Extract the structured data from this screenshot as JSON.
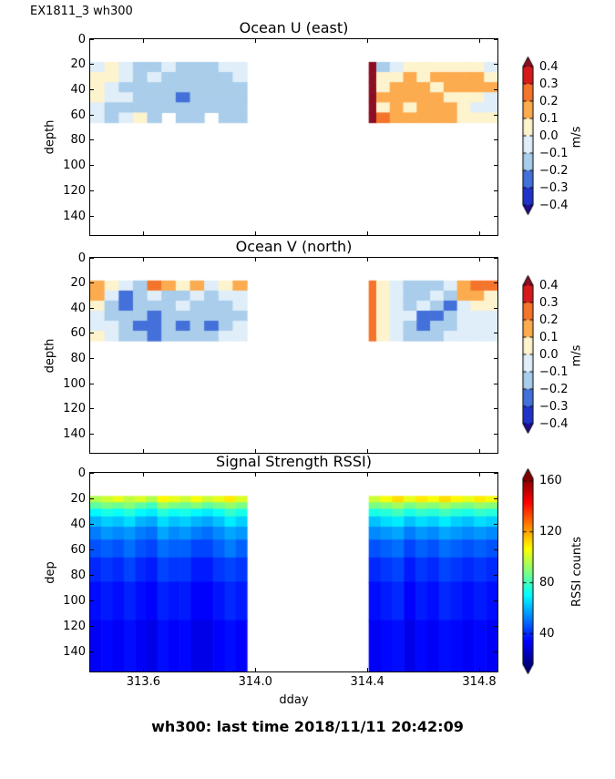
{
  "header": {
    "label": "EX1811_3 wh300"
  },
  "footer": {
    "status": "wh300: last time 2018/11/11 20:42:09"
  },
  "uv_colormap": {
    "vmin": -0.4,
    "vmax": 0.4,
    "step": 0.1,
    "colors": [
      "#2132cb",
      "#4470da",
      "#a9cdea",
      "#dfeef9",
      "#fdf3cd",
      "#fcab4f",
      "#f4742b",
      "#d7191c"
    ],
    "under": "#250a8c",
    "over": "#8c0e22"
  },
  "jet_colormap": {
    "range": [
      16,
      162
    ]
  },
  "chart_data": [
    {
      "type": "heatmap",
      "title": "Ocean U (east)",
      "ylabel": "depth",
      "xlim": [
        313.41,
        314.865
      ],
      "ylim": [
        0,
        155
      ],
      "y_inverted": true,
      "xticks": [
        313.6,
        314.0,
        314.4,
        314.8
      ],
      "xtick_labels": null,
      "yticks": [
        0,
        20,
        40,
        60,
        80,
        100,
        120,
        140
      ],
      "ytick_labels": [
        "0",
        "20",
        "40",
        "60",
        "80",
        "100",
        "120",
        "140"
      ],
      "colorbar": {
        "kind": "uv",
        "label": "m/s",
        "bar_min": -0.4,
        "bar_max": 0.4,
        "ticks": [
          0.4,
          0.3,
          0.2,
          0.1,
          0.0,
          -0.1,
          -0.2,
          -0.3,
          -0.4
        ],
        "tick_labels": [
          "0.4",
          "0.3",
          "0.2",
          "0.1",
          "0.0",
          "−0.1",
          "−0.2",
          "−0.3",
          "−0.4"
        ]
      },
      "blocks": [
        {
          "x0": 313.41,
          "x1": 313.97,
          "depth_edges": [
            18,
            26,
            34,
            42,
            50,
            58,
            66
          ],
          "values": [
            [
              -0.05,
              0.05,
              -0.05,
              -0.12,
              -0.12,
              -0.05,
              -0.12,
              -0.12,
              -0.12,
              -0.05,
              -0.05
            ],
            [
              0.05,
              0.05,
              -0.05,
              -0.15,
              -0.05,
              -0.12,
              -0.15,
              -0.15,
              -0.12,
              -0.12,
              -0.05
            ],
            [
              0.05,
              -0.05,
              -0.12,
              -0.12,
              -0.15,
              -0.12,
              -0.15,
              -0.15,
              -0.15,
              -0.12,
              -0.12
            ],
            [
              0.05,
              -0.05,
              -0.05,
              -0.15,
              -0.12,
              -0.15,
              -0.25,
              -0.15,
              -0.15,
              -0.15,
              -0.12
            ],
            [
              -0.05,
              -0.12,
              -0.15,
              -0.12,
              -0.15,
              -0.15,
              -0.15,
              -0.15,
              -0.15,
              -0.15,
              -0.12
            ],
            [
              -0.05,
              -0.12,
              -0.05,
              0.05,
              -0.12,
              null,
              -0.15,
              -0.15,
              null,
              -0.12,
              -0.12
            ]
          ]
        },
        {
          "x0": 314.405,
          "x1": 314.432,
          "depth_edges": [
            18,
            26,
            34,
            42,
            50,
            58,
            66
          ],
          "values": [
            [
              0.45
            ],
            [
              0.45
            ],
            [
              0.45
            ],
            [
              0.45
            ],
            [
              0.45
            ],
            [
              0.45
            ]
          ]
        },
        {
          "x0": 314.432,
          "x1": 314.865,
          "depth_edges": [
            18,
            26,
            34,
            42,
            50,
            58,
            66
          ],
          "values": [
            [
              -0.15,
              -0.05,
              0.05,
              0.05,
              0.08,
              0.05,
              0.05,
              0.05,
              -0.08
            ],
            [
              0.05,
              0.05,
              0.15,
              0.08,
              0.15,
              0.15,
              0.15,
              0.12,
              0.05
            ],
            [
              0.08,
              0.15,
              0.15,
              0.15,
              0.08,
              0.12,
              0.15,
              0.15,
              0.15
            ],
            [
              0.15,
              0.15,
              0.15,
              0.15,
              0.15,
              0.08,
              0.05,
              0.05,
              -0.08
            ],
            [
              0.08,
              0.15,
              0.08,
              0.15,
              0.15,
              0.15,
              0.08,
              -0.08,
              -0.08
            ],
            [
              0.25,
              0.15,
              0.15,
              0.18,
              0.15,
              0.15,
              0.05,
              0.05,
              0.05
            ]
          ]
        }
      ]
    },
    {
      "type": "heatmap",
      "title": "Ocean V (north)",
      "ylabel": "depth",
      "xlim": [
        313.41,
        314.865
      ],
      "ylim": [
        0,
        155
      ],
      "y_inverted": true,
      "xticks": [
        313.6,
        314.0,
        314.4,
        314.8
      ],
      "xtick_labels": null,
      "yticks": [
        0,
        20,
        40,
        60,
        80,
        100,
        120,
        140
      ],
      "ytick_labels": [
        "0",
        "20",
        "40",
        "60",
        "80",
        "100",
        "120",
        "140"
      ],
      "colorbar": {
        "kind": "uv",
        "label": "m/s",
        "bar_min": -0.4,
        "bar_max": 0.4,
        "ticks": [
          0.4,
          0.3,
          0.2,
          0.1,
          0.0,
          -0.1,
          -0.2,
          -0.3,
          -0.4
        ],
        "tick_labels": [
          "0.4",
          "0.3",
          "0.2",
          "0.1",
          "0.0",
          "−0.1",
          "−0.2",
          "−0.3",
          "−0.4"
        ]
      },
      "blocks": [
        {
          "x0": 313.41,
          "x1": 313.97,
          "depth_edges": [
            18,
            26,
            34,
            42,
            50,
            58,
            66
          ],
          "values": [
            [
              0.15,
              0.05,
              -0.08,
              -0.12,
              0.28,
              0.12,
              0.05,
              0.12,
              -0.08,
              0.05,
              0.15
            ],
            [
              0.12,
              -0.08,
              -0.25,
              -0.12,
              -0.08,
              -0.12,
              -0.12,
              -0.08,
              -0.12,
              -0.08,
              -0.05
            ],
            [
              0.05,
              -0.12,
              -0.25,
              -0.15,
              -0.12,
              -0.12,
              -0.08,
              -0.12,
              -0.15,
              -0.12,
              -0.08
            ],
            [
              -0.08,
              -0.12,
              -0.15,
              -0.15,
              -0.25,
              -0.15,
              -0.12,
              -0.15,
              -0.12,
              -0.15,
              -0.12
            ],
            [
              -0.05,
              -0.08,
              -0.12,
              -0.25,
              -0.25,
              -0.15,
              -0.25,
              -0.12,
              -0.25,
              -0.15,
              -0.08
            ],
            [
              0.05,
              -0.08,
              -0.12,
              -0.15,
              -0.25,
              -0.15,
              -0.15,
              -0.15,
              -0.12,
              -0.08,
              -0.05
            ]
          ]
        },
        {
          "x0": 314.405,
          "x1": 314.432,
          "depth_edges": [
            18,
            26,
            34,
            42,
            50,
            58,
            66
          ],
          "values": [
            [
              0.28
            ],
            [
              0.28
            ],
            [
              0.28
            ],
            [
              0.28
            ],
            [
              0.28
            ],
            [
              0.28
            ]
          ]
        },
        {
          "x0": 314.432,
          "x1": 314.865,
          "depth_edges": [
            18,
            26,
            34,
            42,
            50,
            58,
            66
          ],
          "values": [
            [
              0.05,
              -0.08,
              -0.15,
              -0.12,
              -0.12,
              -0.08,
              0.12,
              0.22,
              0.25
            ],
            [
              0.05,
              -0.05,
              -0.12,
              -0.15,
              -0.08,
              -0.15,
              0.12,
              0.12,
              0.05
            ],
            [
              0.08,
              -0.05,
              -0.12,
              -0.08,
              -0.15,
              -0.25,
              -0.08,
              0.05,
              0.05
            ],
            [
              0.05,
              -0.08,
              -0.08,
              -0.25,
              -0.25,
              -0.12,
              -0.08,
              -0.05,
              -0.05
            ],
            [
              0.08,
              -0.05,
              -0.15,
              -0.25,
              -0.12,
              -0.15,
              -0.08,
              -0.05,
              -0.05
            ],
            [
              0.05,
              -0.08,
              -0.12,
              -0.15,
              -0.12,
              -0.08,
              -0.05,
              -0.05,
              -0.05
            ]
          ]
        }
      ]
    },
    {
      "type": "heatmap",
      "title": "Signal Strength RSSI)",
      "ylabel": "dep",
      "xlabel": "dday",
      "xlim": [
        313.41,
        314.865
      ],
      "ylim": [
        0,
        155
      ],
      "y_inverted": true,
      "xticks": [
        313.6,
        314.0,
        314.4,
        314.8
      ],
      "xtick_labels": [
        "313.6",
        "314.0",
        "314.4",
        "314.8"
      ],
      "yticks": [
        0,
        20,
        40,
        60,
        80,
        100,
        120,
        140
      ],
      "ytick_labels": [
        "0",
        "20",
        "40",
        "60",
        "80",
        "100",
        "120",
        "140"
      ],
      "colorbar": {
        "kind": "jet",
        "label": "RSSI counts",
        "bar_min": 16,
        "bar_max": 162,
        "ticks": [
          160,
          120,
          80,
          40
        ],
        "tick_labels": [
          "160",
          "120",
          "80",
          "40"
        ]
      },
      "blocks": [
        {
          "x0": 313.41,
          "x1": 313.97,
          "depth_edges": [
            18,
            23,
            28,
            34,
            42,
            52,
            66,
            85,
            115,
            155
          ],
          "values": [
            [
              96,
              100,
              104,
              98,
              102,
              96,
              108,
              104,
              100,
              106,
              100,
              104,
              110,
              102
            ],
            [
              84,
              88,
              86,
              90,
              84,
              80,
              92,
              88,
              86,
              90,
              84,
              88,
              92,
              88
            ],
            [
              70,
              74,
              72,
              76,
              70,
              68,
              76,
              72,
              74,
              70,
              68,
              72,
              78,
              74
            ],
            [
              60,
              64,
              62,
              66,
              60,
              58,
              66,
              62,
              64,
              60,
              58,
              62,
              68,
              64
            ],
            [
              52,
              56,
              54,
              56,
              52,
              50,
              58,
              54,
              56,
              52,
              50,
              54,
              58,
              56
            ],
            [
              46,
              48,
              46,
              50,
              46,
              44,
              50,
              48,
              48,
              44,
              44,
              48,
              52,
              48
            ],
            [
              40,
              42,
              40,
              44,
              40,
              38,
              44,
              42,
              42,
              38,
              38,
              42,
              44,
              42
            ],
            [
              36,
              38,
              36,
              39,
              36,
              34,
              39,
              37,
              38,
              34,
              34,
              37,
              40,
              38
            ],
            [
              33,
              35,
              33,
              36,
              33,
              31,
              36,
              34,
              35,
              31,
              31,
              34,
              36,
              34
            ]
          ]
        },
        {
          "x0": 314.405,
          "x1": 314.865,
          "depth_edges": [
            18,
            23,
            28,
            34,
            42,
            52,
            66,
            85,
            115,
            155
          ],
          "values": [
            [
              100,
              106,
              112,
              104,
              110,
              106,
              112,
              108,
              104,
              110,
              106
            ],
            [
              88,
              90,
              94,
              88,
              92,
              90,
              94,
              90,
              88,
              92,
              90
            ],
            [
              74,
              76,
              80,
              74,
              78,
              76,
              80,
              76,
              74,
              78,
              76
            ],
            [
              62,
              66,
              68,
              62,
              66,
              64,
              68,
              64,
              62,
              66,
              64
            ],
            [
              54,
              56,
              58,
              52,
              56,
              54,
              58,
              56,
              54,
              56,
              54
            ],
            [
              46,
              48,
              50,
              44,
              48,
              46,
              50,
              48,
              46,
              48,
              46
            ],
            [
              40,
              42,
              44,
              38,
              42,
              40,
              44,
              42,
              40,
              42,
              40
            ],
            [
              36,
              38,
              40,
              34,
              38,
              36,
              40,
              38,
              36,
              38,
              36
            ],
            [
              33,
              35,
              36,
              31,
              35,
              33,
              36,
              35,
              33,
              35,
              33
            ]
          ]
        }
      ]
    }
  ]
}
